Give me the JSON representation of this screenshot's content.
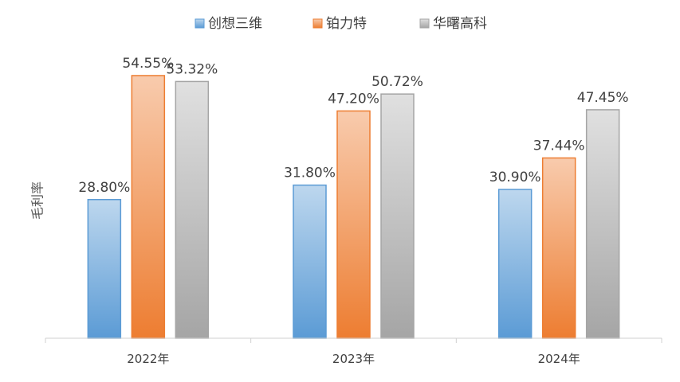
{
  "chart_data": {
    "type": "bar",
    "ylabel": "毛利率",
    "xlabel": "",
    "categories": [
      "2022年",
      "2023年",
      "2024年"
    ],
    "series": [
      {
        "name": "创想三维",
        "values": [
          28.8,
          31.8,
          30.9
        ],
        "labels": [
          "28.80%",
          "31.80%",
          "30.90%"
        ],
        "color_top": "#bdd7ee",
        "color_bottom": "#5b9bd5",
        "stroke": "#5b9bd5"
      },
      {
        "name": "铂力特",
        "values": [
          54.55,
          47.2,
          37.44
        ],
        "labels": [
          "54.55%",
          "47.20%",
          "37.44%"
        ],
        "color_top": "#f8cbad",
        "color_bottom": "#ed7d31",
        "stroke": "#ed7d31"
      },
      {
        "name": "华曙高科",
        "values": [
          53.32,
          50.72,
          47.45
        ],
        "labels": [
          "53.32%",
          "50.72%",
          "47.45%"
        ],
        "color_top": "#e0e0e0",
        "color_bottom": "#a5a5a5",
        "stroke": "#a5a5a5"
      }
    ],
    "ylim": [
      0,
      60
    ],
    "grid": false,
    "legend": "top-center",
    "value_format": "percent"
  }
}
